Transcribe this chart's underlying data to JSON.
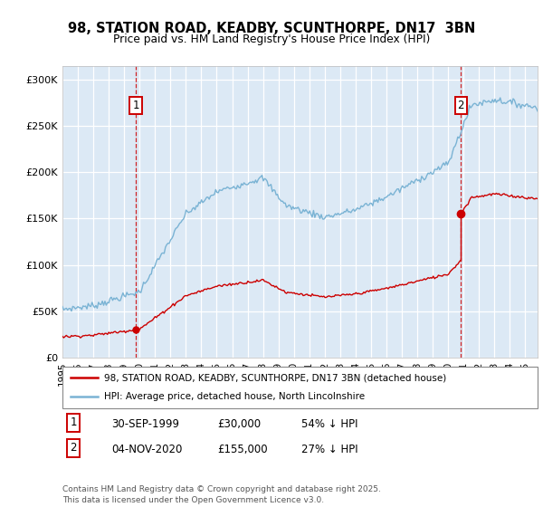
{
  "title_line1": "98, STATION ROAD, KEADBY, SCUNTHORPE, DN17  3BN",
  "title_line2": "Price paid vs. HM Land Registry's House Price Index (HPI)",
  "ytick_values": [
    0,
    50000,
    100000,
    150000,
    200000,
    250000,
    300000
  ],
  "ylim": [
    0,
    315000
  ],
  "xlim_start": 1995.0,
  "xlim_end": 2025.8,
  "xticks": [
    1995,
    1996,
    1997,
    1998,
    1999,
    2000,
    2001,
    2002,
    2003,
    2004,
    2005,
    2006,
    2007,
    2008,
    2009,
    2010,
    2011,
    2012,
    2013,
    2014,
    2015,
    2016,
    2017,
    2018,
    2019,
    2020,
    2021,
    2022,
    2023,
    2024,
    2025
  ],
  "bg_color": "#dce9f5",
  "grid_color": "white",
  "hpi_color": "#7ab3d4",
  "price_color": "#cc0000",
  "marker1_x": 1999.75,
  "marker1_y": 30000,
  "marker2_x": 2020.83,
  "marker2_y": 155000,
  "legend_label1": "98, STATION ROAD, KEADBY, SCUNTHORPE, DN17 3BN (detached house)",
  "legend_label2": "HPI: Average price, detached house, North Lincolnshire",
  "note1_num": "1",
  "note1_date": "30-SEP-1999",
  "note1_price": "£30,000",
  "note1_hpi": "54% ↓ HPI",
  "note2_num": "2",
  "note2_date": "04-NOV-2020",
  "note2_price": "£155,000",
  "note2_hpi": "27% ↓ HPI",
  "footer": "Contains HM Land Registry data © Crown copyright and database right 2025.\nThis data is licensed under the Open Government Licence v3.0."
}
